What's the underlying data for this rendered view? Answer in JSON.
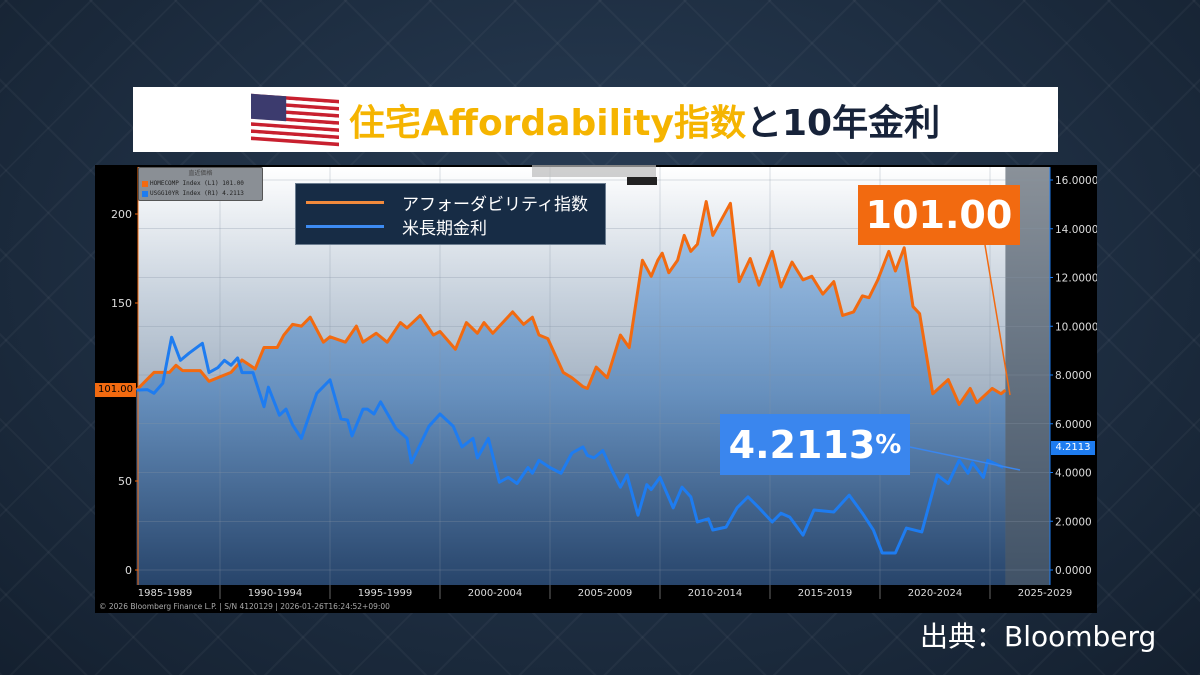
{
  "title": {
    "part_highlight": "住宅Affordability指数",
    "part_rest": "と10年金利",
    "flag_icon": "us-flag-icon"
  },
  "bloomberg_legend": {
    "header": "直近価格",
    "rows": [
      {
        "label": "HOMECOMP Index  (L1) 101.00",
        "color": "#f26a10"
      },
      {
        "label": "USGG10YR Index  (R1)   4.2113",
        "color": "#1e7cf0"
      }
    ]
  },
  "legend": {
    "items": [
      {
        "label": "アフォーダビリティ指数",
        "color": "#f28a3c"
      },
      {
        "label": "米長期金利",
        "color": "#3d8bf2"
      }
    ]
  },
  "annotations": {
    "affordability_last": "101.00",
    "rate_last": "4.2113",
    "rate_unit": "%"
  },
  "axis_tags": {
    "left": "101.00",
    "right": "4.2113"
  },
  "footer": "© 2026 Bloomberg Finance L.P.  |  S/N 4120129  |  2026-01-26T16:24:52+09:00",
  "source": "出典：Bloomberg",
  "colors": {
    "orange": "#f26a10",
    "blue": "#1e7cf0",
    "background": "#1a2a3e"
  },
  "chart_data": {
    "type": "line",
    "x_tick_labels": [
      "1985-1989",
      "1990-1994",
      "1995-1999",
      "2000-2004",
      "2005-2009",
      "2010-2014",
      "2015-2019",
      "2020-2024",
      "2025-2029"
    ],
    "xlim": [
      1986.3,
      2027.7
    ],
    "y_left": {
      "ticks": [
        "0",
        "50",
        "150",
        "200"
      ],
      "ylim": [
        0,
        215
      ]
    },
    "y_right": {
      "ticks": [
        "0.0000",
        "2.0000",
        "4.0000",
        "6.0000",
        "8.0000",
        "10.0000",
        "12.0000",
        "14.0000",
        "16.0000"
      ],
      "ylim": [
        -0.6,
        16.5
      ]
    },
    "grid": true,
    "series": [
      {
        "name": "HOMECOMP Index",
        "axis": "left",
        "points": [
          [
            1986.2,
            101
          ],
          [
            1987.0,
            111
          ],
          [
            1987.7,
            111
          ],
          [
            1988.0,
            115
          ],
          [
            1988.3,
            112
          ],
          [
            1989.1,
            112
          ],
          [
            1989.5,
            106
          ],
          [
            1990.5,
            111
          ],
          [
            1991.0,
            118
          ],
          [
            1991.6,
            113
          ],
          [
            1992.0,
            125
          ],
          [
            1992.6,
            125
          ],
          [
            1992.9,
            132
          ],
          [
            1993.3,
            138
          ],
          [
            1993.7,
            137
          ],
          [
            1994.1,
            142
          ],
          [
            1994.7,
            128
          ],
          [
            1995.0,
            131
          ],
          [
            1995.7,
            128
          ],
          [
            1996.2,
            137
          ],
          [
            1996.5,
            128
          ],
          [
            1997.1,
            133
          ],
          [
            1997.6,
            128
          ],
          [
            1998.2,
            139
          ],
          [
            1998.5,
            136
          ],
          [
            1999.1,
            143
          ],
          [
            1999.7,
            132
          ],
          [
            2000.0,
            134
          ],
          [
            2000.7,
            124
          ],
          [
            2001.2,
            139
          ],
          [
            2001.7,
            133
          ],
          [
            2002.0,
            139
          ],
          [
            2002.4,
            133
          ],
          [
            2003.3,
            145
          ],
          [
            2003.8,
            138
          ],
          [
            2004.2,
            142
          ],
          [
            2004.5,
            132
          ],
          [
            2004.9,
            130
          ],
          [
            2005.6,
            111
          ],
          [
            2006.0,
            108
          ],
          [
            2006.5,
            103
          ],
          [
            2006.7,
            102
          ],
          [
            2007.1,
            114
          ],
          [
            2007.6,
            108
          ],
          [
            2008.2,
            132
          ],
          [
            2008.6,
            125
          ],
          [
            2009.2,
            174
          ],
          [
            2009.6,
            165
          ],
          [
            2009.9,
            174
          ],
          [
            2010.1,
            178
          ],
          [
            2010.4,
            167
          ],
          [
            2010.8,
            174
          ],
          [
            2011.1,
            188
          ],
          [
            2011.4,
            179
          ],
          [
            2011.7,
            183
          ],
          [
            2012.1,
            207
          ],
          [
            2012.4,
            188
          ],
          [
            2012.8,
            197
          ],
          [
            2013.2,
            206
          ],
          [
            2013.6,
            162
          ],
          [
            2014.1,
            175
          ],
          [
            2014.5,
            160
          ],
          [
            2015.1,
            179
          ],
          [
            2015.5,
            159
          ],
          [
            2016.0,
            173
          ],
          [
            2016.5,
            163
          ],
          [
            2016.9,
            165
          ],
          [
            2017.4,
            155
          ],
          [
            2017.9,
            162
          ],
          [
            2018.3,
            143
          ],
          [
            2018.8,
            145
          ],
          [
            2019.2,
            154
          ],
          [
            2019.5,
            153
          ],
          [
            2019.9,
            163
          ],
          [
            2020.4,
            179
          ],
          [
            2020.7,
            168
          ],
          [
            2021.1,
            181
          ],
          [
            2021.5,
            148
          ],
          [
            2021.8,
            144
          ],
          [
            2022.4,
            99
          ],
          [
            2023.1,
            107
          ],
          [
            2023.6,
            93
          ],
          [
            2024.1,
            102
          ],
          [
            2024.4,
            94
          ],
          [
            2025.1,
            102
          ],
          [
            2025.5,
            99
          ],
          [
            2025.7,
            101
          ]
        ]
      },
      {
        "name": "USGG10YR Index",
        "axis": "right",
        "points": [
          [
            1986.2,
            7.38
          ],
          [
            1986.7,
            7.4
          ],
          [
            1987.0,
            7.25
          ],
          [
            1987.4,
            7.66
          ],
          [
            1987.8,
            9.55
          ],
          [
            1988.2,
            8.6
          ],
          [
            1988.6,
            8.9
          ],
          [
            1989.2,
            9.3
          ],
          [
            1989.5,
            8.1
          ],
          [
            1989.9,
            8.3
          ],
          [
            1990.2,
            8.6
          ],
          [
            1990.5,
            8.4
          ],
          [
            1990.8,
            8.7
          ],
          [
            1991.0,
            8.1
          ],
          [
            1991.5,
            8.1
          ],
          [
            1992.0,
            6.7
          ],
          [
            1992.2,
            7.5
          ],
          [
            1992.7,
            6.35
          ],
          [
            1993.0,
            6.6
          ],
          [
            1993.3,
            5.95
          ],
          [
            1993.7,
            5.4
          ],
          [
            1994.4,
            7.25
          ],
          [
            1995.0,
            7.8
          ],
          [
            1995.5,
            6.2
          ],
          [
            1995.8,
            6.15
          ],
          [
            1996.0,
            5.5
          ],
          [
            1996.5,
            6.6
          ],
          [
            1996.7,
            6.6
          ],
          [
            1997.0,
            6.4
          ],
          [
            1997.3,
            6.9
          ],
          [
            1998.0,
            5.8
          ],
          [
            1998.5,
            5.4
          ],
          [
            1998.7,
            4.4
          ],
          [
            1999.5,
            5.9
          ],
          [
            2000.0,
            6.4
          ],
          [
            2000.6,
            5.9
          ],
          [
            2001.0,
            5.05
          ],
          [
            2001.5,
            5.4
          ],
          [
            2001.7,
            4.6
          ],
          [
            2002.2,
            5.4
          ],
          [
            2002.7,
            3.6
          ],
          [
            2003.1,
            3.8
          ],
          [
            2003.5,
            3.55
          ],
          [
            2004.0,
            4.2
          ],
          [
            2004.2,
            3.97
          ],
          [
            2004.5,
            4.5
          ],
          [
            2005.0,
            4.2
          ],
          [
            2005.5,
            3.97
          ],
          [
            2006.0,
            4.8
          ],
          [
            2006.5,
            5.05
          ],
          [
            2006.7,
            4.7
          ],
          [
            2007.0,
            4.6
          ],
          [
            2007.4,
            4.9
          ],
          [
            2007.8,
            4.1
          ],
          [
            2008.2,
            3.4
          ],
          [
            2008.5,
            3.9
          ],
          [
            2009.0,
            2.25
          ],
          [
            2009.4,
            3.5
          ],
          [
            2009.6,
            3.3
          ],
          [
            2010.0,
            3.8
          ],
          [
            2010.6,
            2.55
          ],
          [
            2011.0,
            3.4
          ],
          [
            2011.4,
            3.0
          ],
          [
            2011.7,
            1.97
          ],
          [
            2012.2,
            2.1
          ],
          [
            2012.4,
            1.64
          ],
          [
            2013.0,
            1.76
          ],
          [
            2013.5,
            2.55
          ],
          [
            2014.0,
            3.0
          ],
          [
            2014.5,
            2.55
          ],
          [
            2015.1,
            1.97
          ],
          [
            2015.5,
            2.33
          ],
          [
            2015.9,
            2.17
          ],
          [
            2016.5,
            1.43
          ],
          [
            2017.0,
            2.46
          ],
          [
            2017.9,
            2.38
          ],
          [
            2018.6,
            3.07
          ],
          [
            2019.2,
            2.33
          ],
          [
            2019.7,
            1.64
          ],
          [
            2020.1,
            0.7
          ],
          [
            2020.7,
            0.7
          ],
          [
            2021.2,
            1.72
          ],
          [
            2021.9,
            1.56
          ],
          [
            2022.6,
            3.9
          ],
          [
            2023.1,
            3.55
          ],
          [
            2023.6,
            4.5
          ],
          [
            2024.0,
            3.97
          ],
          [
            2024.2,
            4.4
          ],
          [
            2024.7,
            3.8
          ],
          [
            2024.9,
            4.5
          ],
          [
            2025.6,
            4.2113
          ]
        ]
      }
    ]
  }
}
